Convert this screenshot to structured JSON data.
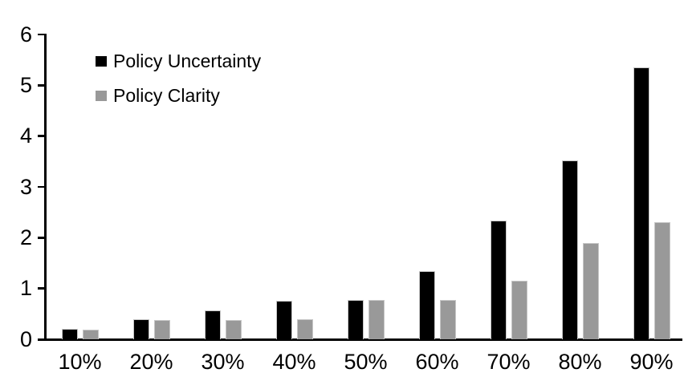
{
  "chart_data": {
    "type": "bar",
    "title": "",
    "xlabel": "",
    "ylabel": "",
    "categories": [
      "10%",
      "20%",
      "30%",
      "40%",
      "50%",
      "60%",
      "70%",
      "80%",
      "90%"
    ],
    "series": [
      {
        "name": "Policy Uncertainty",
        "color": "#000000",
        "values": [
          0.2,
          0.39,
          0.57,
          0.76,
          0.78,
          1.34,
          2.33,
          3.52,
          5.35
        ]
      },
      {
        "name": "Policy Clarity",
        "color": "#999999",
        "values": [
          0.19,
          0.38,
          0.38,
          0.39,
          0.77,
          0.77,
          1.15,
          1.9,
          2.3
        ]
      }
    ],
    "ylim": [
      0,
      6
    ],
    "yticks": [
      0,
      1,
      2,
      3,
      4,
      5,
      6
    ],
    "grid": false,
    "legend_position": "inside-top-left"
  },
  "legend": {
    "items": [
      {
        "label": "Policy Uncertainty",
        "color": "#000000"
      },
      {
        "label": "Policy Clarity",
        "color": "#999999"
      }
    ]
  }
}
